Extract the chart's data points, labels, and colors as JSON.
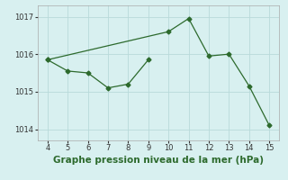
{
  "series1_x": [
    4,
    5,
    6,
    7,
    8,
    9
  ],
  "series1_y": [
    1015.85,
    1015.55,
    1015.5,
    1015.1,
    1015.2,
    1015.85
  ],
  "series2_x": [
    4,
    10,
    11,
    12,
    13,
    14,
    15
  ],
  "series2_y": [
    1015.85,
    1016.6,
    1016.95,
    1015.95,
    1016.0,
    1015.15,
    1014.1
  ],
  "line_color": "#2d6a2d",
  "bg_color": "#d8f0f0",
  "grid_color": "#b8dada",
  "xlabel": "Graphe pression niveau de la mer (hPa)",
  "xlim": [
    3.5,
    15.5
  ],
  "ylim": [
    1013.7,
    1017.3
  ],
  "yticks": [
    1014,
    1015,
    1016,
    1017
  ],
  "xticks": [
    4,
    5,
    6,
    7,
    8,
    9,
    10,
    11,
    12,
    13,
    14,
    15
  ],
  "tick_fontsize": 6,
  "xlabel_fontsize": 7.5,
  "marker_size": 2.5,
  "linewidth": 0.9
}
